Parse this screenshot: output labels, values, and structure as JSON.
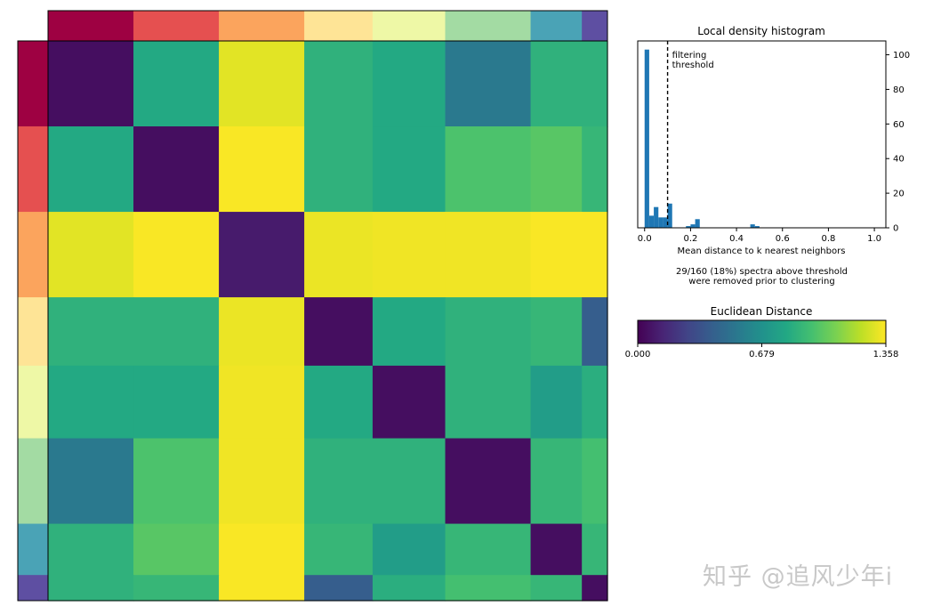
{
  "chart_data": [
    {
      "type": "heatmap",
      "title": "",
      "clusters": [
        {
          "color": "#9e0142",
          "size": 20
        },
        {
          "color": "#e55050",
          "size": 20
        },
        {
          "color": "#fba45d",
          "size": 20
        },
        {
          "color": "#fee496",
          "size": 16
        },
        {
          "color": "#eef8a6",
          "size": 17
        },
        {
          "color": "#a3dba3",
          "size": 20
        },
        {
          "color": "#4aa3b6",
          "size": 12
        },
        {
          "color": "#5e4fa2",
          "size": 6
        }
      ],
      "block_distance": [
        [
          0.05,
          0.82,
          1.3,
          0.87,
          0.82,
          0.55,
          0.87,
          0.87
        ],
        [
          0.82,
          0.05,
          1.35,
          0.87,
          0.82,
          0.97,
          1.0,
          0.9
        ],
        [
          1.3,
          1.35,
          0.1,
          1.32,
          1.33,
          1.33,
          1.35,
          1.35
        ],
        [
          0.87,
          0.87,
          1.32,
          0.05,
          0.82,
          0.87,
          0.9,
          0.4
        ],
        [
          0.82,
          0.82,
          1.33,
          0.82,
          0.05,
          0.87,
          0.75,
          0.85
        ],
        [
          0.55,
          0.97,
          1.33,
          0.87,
          0.87,
          0.05,
          0.9,
          0.95
        ],
        [
          0.87,
          1.0,
          1.35,
          0.9,
          0.75,
          0.9,
          0.05,
          0.9
        ],
        [
          0.87,
          0.9,
          1.35,
          0.4,
          0.85,
          0.95,
          0.9,
          0.05
        ]
      ],
      "colorbar": {
        "title": "Euclidean Distance",
        "min": 0.0,
        "max": 1.358,
        "tick_labels": [
          "0.000",
          "0.679",
          "1.358"
        ],
        "colormap": "viridis"
      }
    },
    {
      "type": "bar",
      "title": "Local density histogram",
      "xlabel": "Mean distance to k nearest neighbors",
      "ylabel": "",
      "xlim": [
        -0.03,
        1.05
      ],
      "ylim": [
        0,
        108
      ],
      "yaxis_side": "right",
      "x_ticks": [
        0.0,
        0.2,
        0.4,
        0.6,
        0.8,
        1.0
      ],
      "x_tick_labels": [
        "0.0",
        "0.2",
        "0.4",
        "0.6",
        "0.8",
        "1.0"
      ],
      "y_ticks": [
        0,
        20,
        40,
        60,
        80,
        100
      ],
      "y_tick_labels": [
        "0",
        "20",
        "40",
        "60",
        "80",
        "100"
      ],
      "bin_width": 0.02,
      "bins": [
        {
          "x": 0.0,
          "count": 103
        },
        {
          "x": 0.02,
          "count": 7
        },
        {
          "x": 0.04,
          "count": 12
        },
        {
          "x": 0.06,
          "count": 6
        },
        {
          "x": 0.08,
          "count": 6
        },
        {
          "x": 0.1,
          "count": 14
        },
        {
          "x": 0.18,
          "count": 1
        },
        {
          "x": 0.2,
          "count": 2
        },
        {
          "x": 0.22,
          "count": 5
        },
        {
          "x": 0.46,
          "count": 2
        },
        {
          "x": 0.48,
          "count": 1
        }
      ],
      "bar_color": "#1f77b4",
      "threshold": 0.1,
      "threshold_label": "filtering\nthreshold",
      "annotation": "29/160 (18%) spectra above threshold\nwere removed prior to clustering"
    }
  ],
  "watermark": "知乎 @追风少年i"
}
